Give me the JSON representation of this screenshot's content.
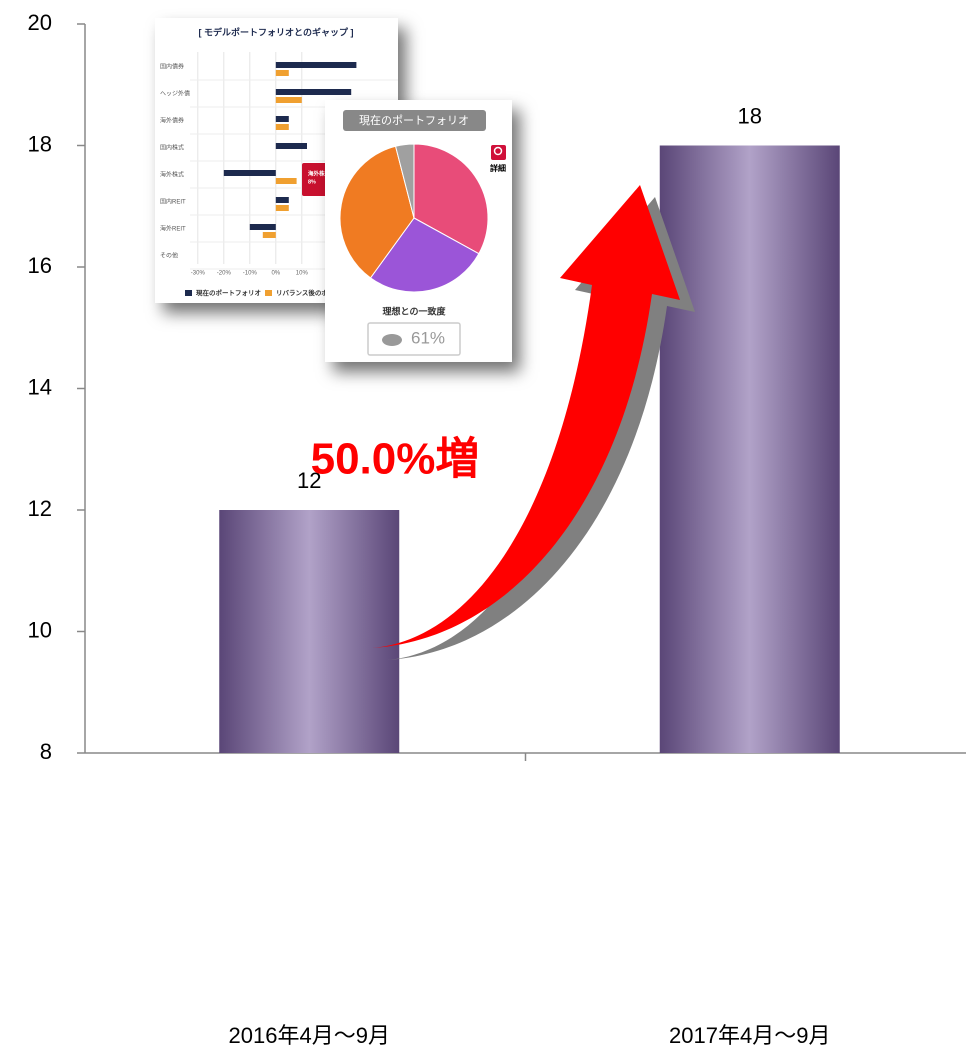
{
  "chart_data": [
    {
      "type": "bar",
      "categories": [
        "2016年4月～9月",
        "2017年4月～9月"
      ],
      "values": [
        12,
        18
      ],
      "color": "#b1a2c8",
      "ylim": [
        8,
        20
      ],
      "yticks": [
        8,
        10,
        12,
        14,
        16,
        18,
        20
      ],
      "annotation": "50.0%増"
    },
    {
      "type": "hbar",
      "title": "[ モデルポートフォリオとのギャップ ]",
      "categories": [
        "国内債券",
        "ヘッジ外債",
        "海外債券",
        "国内株式",
        "海外株式",
        "国内REIT",
        "海外REIT",
        "その他"
      ],
      "series": [
        {
          "name": "現在のポートフォリオ",
          "color": "#1d2a4e",
          "values": [
            31,
            29,
            5,
            12,
            -20,
            5,
            -10,
            0
          ]
        },
        {
          "name": "リバランス後のポ",
          "color": "#f0a030",
          "values": [
            5,
            10,
            5,
            0,
            8,
            5,
            -5,
            0
          ]
        }
      ],
      "xlim": [
        -33,
        47
      ],
      "xticks": [
        {
          "value": -30,
          "label": "-30%"
        },
        {
          "value": -20,
          "label": "-20%"
        },
        {
          "value": -10,
          "label": "-10%"
        },
        {
          "value": 0,
          "label": "0%"
        },
        {
          "value": 10,
          "label": "10%"
        }
      ],
      "tooltip": [
        "海外株式",
        "8%"
      ],
      "grid": true
    },
    {
      "type": "pie",
      "title": "現在のポートフォリオ",
      "values": [
        33,
        27,
        36,
        4
      ],
      "colors": [
        "#e84c79",
        "#9b55d8",
        "#f07b22",
        "#a0a0a0"
      ],
      "button": "詳細",
      "match_label": "理想との一致度",
      "match_text": "61%"
    }
  ]
}
